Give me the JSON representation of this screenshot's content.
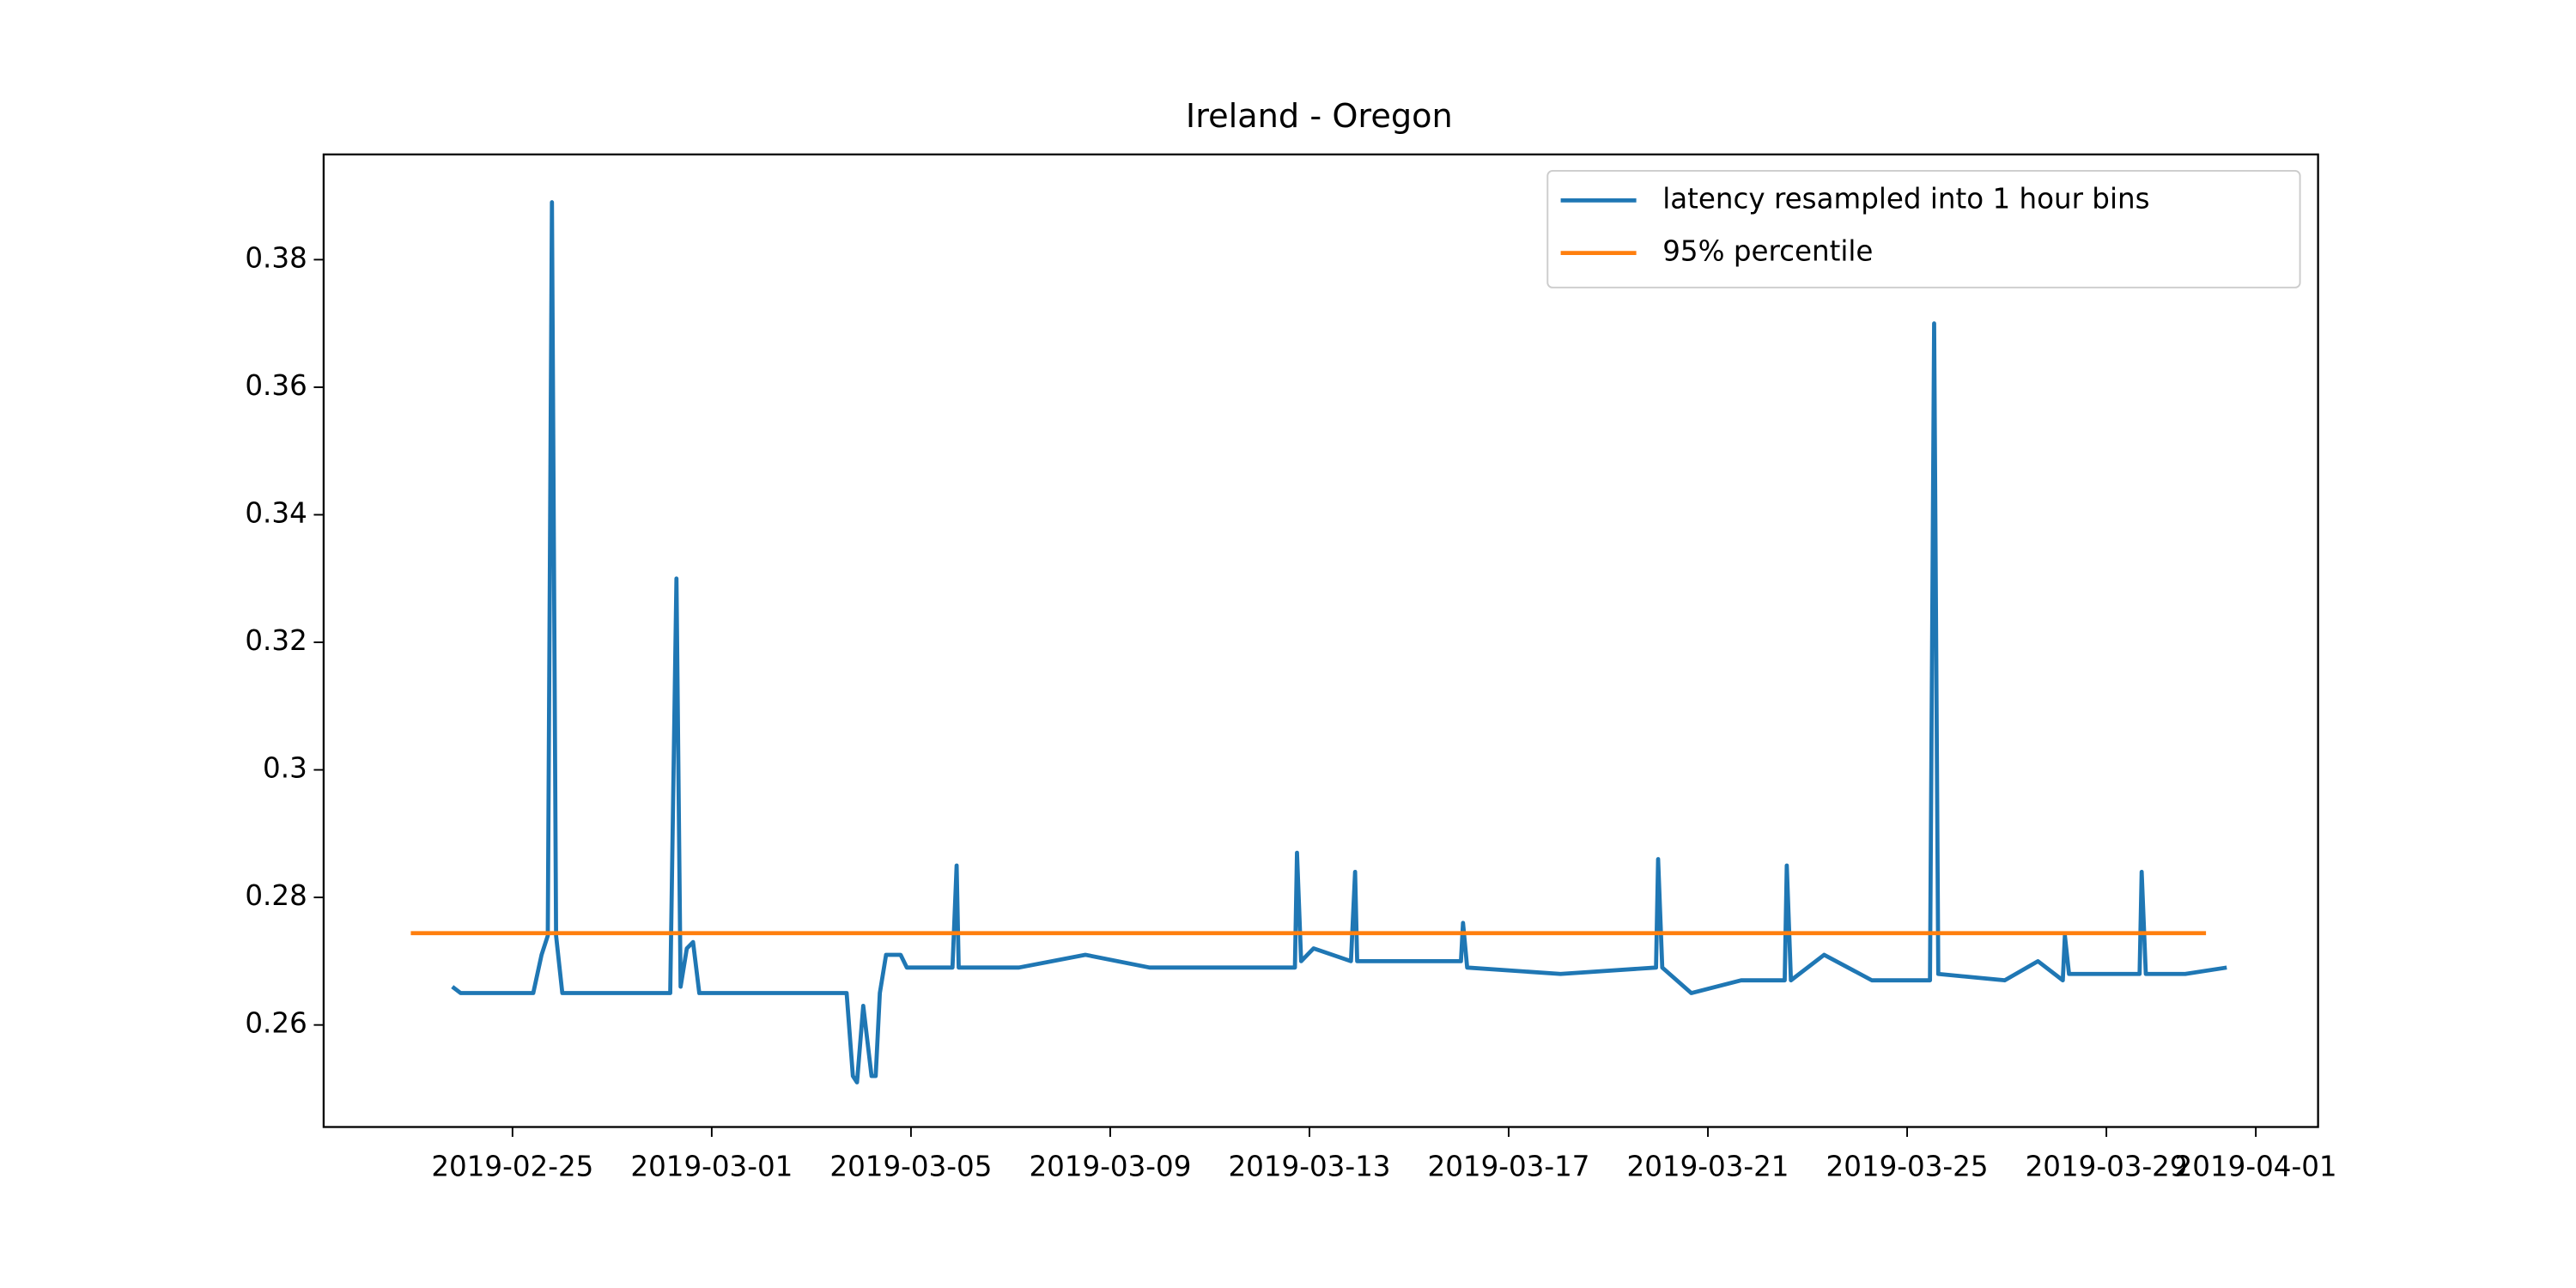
{
  "chart_data": {
    "type": "line",
    "title": "Ireland - Oregon",
    "xlim": [
      "2019-02-21 05:00",
      "2019-04-02 06:00"
    ],
    "xticks": [
      "2019-02-25",
      "2019-03-01",
      "2019-03-05",
      "2019-03-09",
      "2019-03-13",
      "2019-03-17",
      "2019-03-21",
      "2019-03-25",
      "2019-03-29",
      "2019-04-01"
    ],
    "ylim": [
      0.244,
      0.3965
    ],
    "yticks": [
      0.26,
      0.28,
      0.3,
      0.32,
      0.34,
      0.36,
      0.38
    ],
    "legend": "upper right",
    "series": [
      {
        "name": "latency resampled into 1 hour bins",
        "color": "#1f77b4",
        "x": [
          "2019-02-23 19:00",
          "2019-02-23 23:00",
          "2019-02-24 14:00",
          "2019-02-25 10:00",
          "2019-02-25 14:00",
          "2019-02-25 17:00",
          "2019-02-25 19:00",
          "2019-02-25 21:00",
          "2019-02-26 00:00",
          "2019-02-26 14:00",
          "2019-02-27 06:00",
          "2019-02-28 04:00",
          "2019-02-28 07:00",
          "2019-02-28 09:00",
          "2019-02-28 12:00",
          "2019-02-28 15:00",
          "2019-02-28 18:00",
          "2019-03-01 13:00",
          "2019-03-02 13:00",
          "2019-03-03 17:00",
          "2019-03-03 20:00",
          "2019-03-03 22:00",
          "2019-03-04 01:00",
          "2019-03-04 05:00",
          "2019-03-04 07:00",
          "2019-03-04 09:00",
          "2019-03-04 12:00",
          "2019-03-04 19:00",
          "2019-03-04 22:00",
          "2019-03-05 20:00",
          "2019-03-05 22:00",
          "2019-03-05 23:00",
          "2019-03-07 04:00",
          "2019-03-08 12:00",
          "2019-03-09 19:00",
          "2019-03-11 11:00",
          "2019-03-12 17:00",
          "2019-03-12 18:00",
          "2019-03-12 20:00",
          "2019-03-13 02:00",
          "2019-03-13 20:00",
          "2019-03-13 22:00",
          "2019-03-13 23:00",
          "2019-03-15 02:00",
          "2019-03-16 01:00",
          "2019-03-16 02:00",
          "2019-03-16 04:00",
          "2019-03-18 01:00",
          "2019-03-19 23:00",
          "2019-03-20 00:00",
          "2019-03-20 02:00",
          "2019-03-20 16:00",
          "2019-03-21 16:00",
          "2019-03-22 13:00",
          "2019-03-22 14:00",
          "2019-03-22 16:00",
          "2019-03-23 08:00",
          "2019-03-24 07:00",
          "2019-03-25 11:00",
          "2019-03-25 13:00",
          "2019-03-25 15:00",
          "2019-03-26 23:00",
          "2019-03-27 15:00",
          "2019-03-28 03:00",
          "2019-03-28 04:00",
          "2019-03-28 06:00",
          "2019-03-29 16:00",
          "2019-03-29 17:00",
          "2019-03-29 19:00",
          "2019-03-30 14:00",
          "2019-03-31 10:00"
        ],
        "values": [
          0.266,
          0.265,
          0.265,
          0.265,
          0.271,
          0.274,
          0.389,
          0.274,
          0.265,
          0.265,
          0.265,
          0.265,
          0.33,
          0.266,
          0.272,
          0.273,
          0.265,
          0.265,
          0.265,
          0.265,
          0.252,
          0.251,
          0.263,
          0.252,
          0.252,
          0.265,
          0.271,
          0.271,
          0.269,
          0.269,
          0.285,
          0.269,
          0.269,
          0.271,
          0.269,
          0.269,
          0.269,
          0.287,
          0.27,
          0.272,
          0.27,
          0.284,
          0.27,
          0.27,
          0.27,
          0.276,
          0.269,
          0.268,
          0.269,
          0.286,
          0.269,
          0.265,
          0.267,
          0.267,
          0.285,
          0.267,
          0.271,
          0.267,
          0.267,
          0.37,
          0.268,
          0.267,
          0.27,
          0.267,
          0.274,
          0.268,
          0.268,
          0.284,
          0.268,
          0.268,
          0.269
        ]
      },
      {
        "name": "95% percentile",
        "color": "#ff7f0e",
        "x": [
          "2019-02-22 23:00",
          "2019-03-31 00:00"
        ],
        "values": [
          0.2744,
          0.2744
        ]
      }
    ]
  }
}
